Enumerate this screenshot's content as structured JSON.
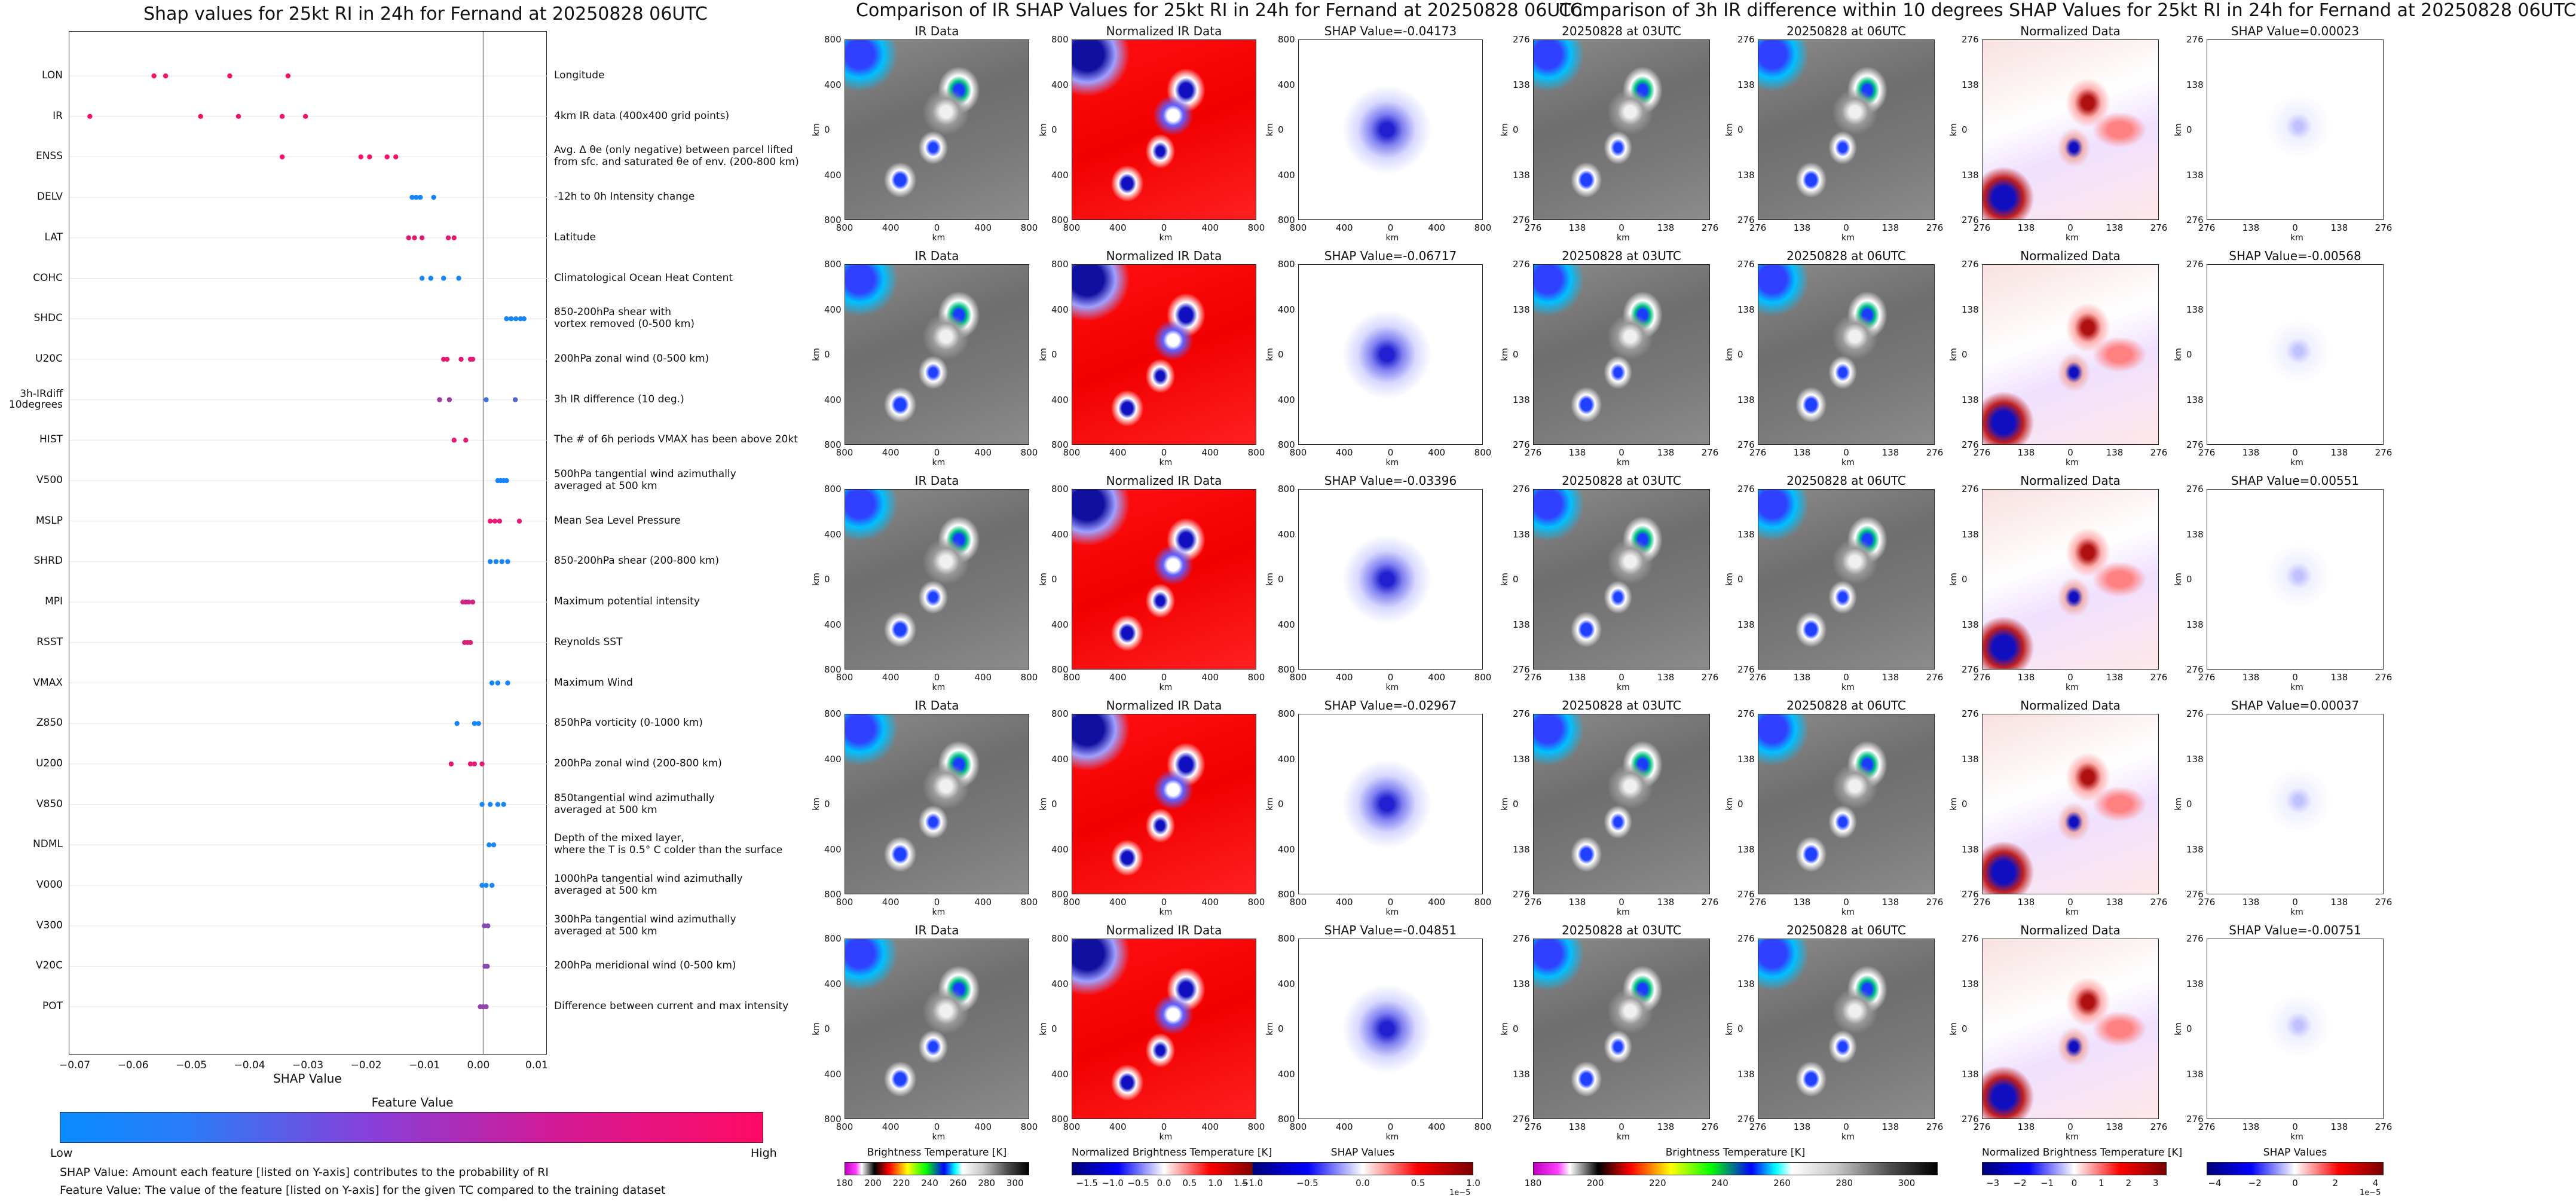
{
  "titles": {
    "left": "Shap values for 25kt RI in 24h for Fernand at 20250828 06UTC",
    "middle": "Comparison of IR SHAP Values for 25kt RI in 24h for Fernand at 20250828 06UTC",
    "right": "Comparison of 3h IR difference within 10 degrees SHAP Values for 25kt RI in 24h for Fernand at 20250828 06UTC"
  },
  "chart_data": [
    {
      "type": "scatter",
      "title": "Shap values for 25kt RI in 24h for Fernand at 20250828 06UTC",
      "xlabel": "SHAP Value",
      "xlim": [
        -0.07,
        0.01
      ],
      "xticks": [
        "−0.07",
        "−0.06",
        "−0.05",
        "−0.04",
        "−0.03",
        "−0.02",
        "−0.01",
        "0.00",
        "0.01"
      ],
      "xtick_values": [
        -0.07,
        -0.06,
        -0.05,
        -0.04,
        -0.03,
        -0.02,
        -0.01,
        0.0,
        0.01
      ],
      "colorbar": {
        "label": "Feature Value",
        "low": "Low",
        "high": "High",
        "low_color": "#0a8cff",
        "high_color": "#ff0a64"
      },
      "features": [
        {
          "name": "LON",
          "desc": "Longitude",
          "values": [
            -0.0565,
            -0.0545,
            -0.0435,
            -0.0335
          ],
          "f": [
            0.95,
            0.95,
            0.95,
            0.95
          ]
        },
        {
          "name": "IR",
          "desc": "4km IR data (400x400 grid points)",
          "values": [
            -0.0675,
            -0.0485,
            -0.042,
            -0.0345,
            -0.0305
          ],
          "f": [
            0.95,
            0.95,
            0.95,
            0.95,
            0.95
          ]
        },
        {
          "name": "ENSS",
          "desc": "Avg. Δ θe (only negative) between parcel lifted\nfrom sfc. and saturated θe of env. (200-800 km)",
          "values": [
            -0.0345,
            -0.021,
            -0.0195,
            -0.0165,
            -0.015
          ],
          "f": [
            0.95,
            0.95,
            0.95,
            0.95,
            0.95
          ]
        },
        {
          "name": "DELV",
          "desc": "-12h to 0h Intensity change",
          "values": [
            -0.0122,
            -0.0115,
            -0.0108,
            -0.0085
          ],
          "f": [
            0.05,
            0.05,
            0.05,
            0.05
          ]
        },
        {
          "name": "LAT",
          "desc": "Latitude",
          "values": [
            -0.0128,
            -0.0118,
            -0.0105,
            -0.006,
            -0.005
          ],
          "f": [
            0.9,
            0.9,
            0.9,
            0.9,
            0.9
          ]
        },
        {
          "name": "COHC",
          "desc": "Climatological Ocean Heat Content",
          "values": [
            -0.0105,
            -0.009,
            -0.0068,
            -0.0042
          ],
          "f": [
            0.05,
            0.05,
            0.05,
            0.05
          ]
        },
        {
          "name": "SHDC",
          "desc": "850-200hPa shear with\nvortex removed (0-500 km)",
          "values": [
            0.004,
            0.0048,
            0.0056,
            0.0064,
            0.007
          ],
          "f": [
            0.05,
            0.05,
            0.05,
            0.05,
            0.05
          ]
        },
        {
          "name": "U20C",
          "desc": "200hPa zonal wind (0-500 km)",
          "values": [
            -0.0068,
            -0.0062,
            -0.0038,
            -0.0022,
            -0.0018
          ],
          "f": [
            0.9,
            0.9,
            0.9,
            0.9,
            0.9
          ]
        },
        {
          "name": "3h-IRdiff\n10degrees",
          "desc": "3h IR difference (10 deg.)",
          "values": [
            -0.0075,
            -0.0058,
            0.0005,
            0.0055
          ],
          "f": [
            0.6,
            0.6,
            0.2,
            0.3
          ]
        },
        {
          "name": "HIST",
          "desc": "The # of 6h periods VMAX has been above 20kt",
          "values": [
            -0.005,
            -0.003
          ],
          "f": [
            0.9,
            0.9
          ]
        },
        {
          "name": "V500",
          "desc": "500hPa tangential wind azimuthally\naveraged at 500 km",
          "values": [
            0.0025,
            0.003,
            0.0035,
            0.004
          ],
          "f": [
            0.05,
            0.05,
            0.05,
            0.05
          ]
        },
        {
          "name": "MSLP",
          "desc": "Mean Sea Level Pressure",
          "values": [
            0.0012,
            0.002,
            0.0028,
            0.0062
          ],
          "f": [
            0.9,
            0.9,
            0.9,
            0.9
          ]
        },
        {
          "name": "SHRD",
          "desc": "850-200hPa shear (200-800 km)",
          "values": [
            0.0012,
            0.0022,
            0.0032,
            0.0042
          ],
          "f": [
            0.05,
            0.05,
            0.05,
            0.05
          ]
        },
        {
          "name": "MPI",
          "desc": "Maximum potential intensity",
          "values": [
            -0.0035,
            -0.003,
            -0.0025,
            -0.0018
          ],
          "f": [
            0.8,
            0.8,
            0.8,
            0.8
          ]
        },
        {
          "name": "RSST",
          "desc": "Reynolds SST",
          "values": [
            -0.0032,
            -0.0027,
            -0.0022
          ],
          "f": [
            0.85,
            0.85,
            0.85
          ]
        },
        {
          "name": "VMAX",
          "desc": "Maximum Wind",
          "values": [
            0.0015,
            0.0025,
            0.0042
          ],
          "f": [
            0.05,
            0.05,
            0.05
          ]
        },
        {
          "name": "Z850",
          "desc": "850hPa vorticity (0-1000 km)",
          "values": [
            -0.0045,
            -0.0015,
            -0.0008
          ],
          "f": [
            0.05,
            0.05,
            0.05
          ]
        },
        {
          "name": "U200",
          "desc": "200hPa zonal wind (200-800 km)",
          "values": [
            -0.0055,
            -0.0022,
            -0.0015,
            -0.0002
          ],
          "f": [
            0.9,
            0.9,
            0.9,
            0.9
          ]
        },
        {
          "name": "V850",
          "desc": "850tangential wind azimuthally\naveraged at 500 km",
          "values": [
            -0.0002,
            0.0012,
            0.0025,
            0.0035
          ],
          "f": [
            0.05,
            0.05,
            0.05,
            0.05
          ]
        },
        {
          "name": "NDML",
          "desc": "Depth of the mixed layer,\nwhere the T is 0.5° C colder than the surface",
          "values": [
            0.001,
            0.0018
          ],
          "f": [
            0.05,
            0.05
          ]
        },
        {
          "name": "V000",
          "desc": "1000hPa tangential wind azimuthally\naveraged at 500 km",
          "values": [
            -0.0002,
            0.0005,
            0.0015
          ],
          "f": [
            0.05,
            0.05,
            0.05
          ]
        },
        {
          "name": "V300",
          "desc": "300hPa tangential wind azimuthally\naveraged at 500 km",
          "values": [
            0.0002,
            0.0008
          ],
          "f": [
            0.5,
            0.5
          ]
        },
        {
          "name": "V20C",
          "desc": "200hPa meridional wind (0-500 km)",
          "values": [
            0.0003,
            0.0007
          ],
          "f": [
            0.5,
            0.5
          ]
        },
        {
          "name": "POT",
          "desc": "Difference between current and max intensity",
          "values": [
            -0.0005,
            0.0,
            0.0005
          ],
          "f": [
            0.55,
            0.55,
            0.55
          ]
        }
      ]
    },
    {
      "type": "heatmap",
      "title": "Comparison of IR SHAP Values for 25kt RI in 24h for Fernand at 20250828 06UTC",
      "columns": [
        "IR Data",
        "Normalized IR Data",
        "SHAP"
      ],
      "shap_values": [
        "-0.04173",
        "-0.06717",
        "-0.03396",
        "-0.02967",
        "-0.04851"
      ],
      "xlabel": "km",
      "ylabel": "km",
      "xticks": [
        "800",
        "400",
        "0",
        "400",
        "800"
      ],
      "yticks": [
        "800",
        "400",
        "0",
        "400",
        "800"
      ]
    },
    {
      "type": "heatmap",
      "title": "Comparison of 3h IR difference within 10 degrees SHAP Values for 25kt RI in 24h for Fernand at 20250828 06UTC",
      "columns": [
        "20250828 at 03UTC",
        "20250828 at 06UTC",
        "Normalized Data",
        "SHAP"
      ],
      "shap_values": [
        "0.00023",
        "-0.00568",
        "0.00551",
        "0.00037",
        "-0.00751"
      ],
      "xlabel": "km",
      "ylabel": "km",
      "xticks": [
        "276",
        "138",
        "0",
        "138",
        "276"
      ],
      "yticks": [
        "276",
        "138",
        "0",
        "138",
        "276"
      ]
    }
  ],
  "panel_labels": {
    "ir": "IR Data",
    "nir": "Normalized IR Data",
    "shap_prefix": "SHAP Value=",
    "t03": "20250828 at 03UTC",
    "t06": "20250828 at 06UTC",
    "ndata": "Normalized Data",
    "km": "km"
  },
  "colorbars": [
    {
      "label": "Brightness Temperature [K]",
      "ticks": [
        "180",
        "200",
        "220",
        "240",
        "260",
        "280",
        "300"
      ],
      "range": [
        180,
        310
      ]
    },
    {
      "label": "Normalized Brightness Temperature [K]",
      "ticks": [
        "−1.5",
        "−1.0",
        "−0.5",
        "0.0",
        "0.5",
        "1.0",
        "1.5"
      ],
      "range": [
        -1.8,
        1.8
      ]
    },
    {
      "label": "SHAP Values",
      "ticks": [
        "−1.0",
        "−0.5",
        "0.0",
        "0.5",
        "1.0"
      ],
      "range": [
        -1.0,
        1.0
      ],
      "exp": "1e−5"
    },
    {
      "label": "Brightness Temperature [K]",
      "ticks": [
        "180",
        "200",
        "220",
        "240",
        "260",
        "280",
        "300"
      ],
      "range": [
        180,
        310
      ]
    },
    {
      "label": "Normalized Brightness Temperature [K]",
      "ticks": [
        "−3",
        "−2",
        "−1",
        "0",
        "1",
        "2",
        "3"
      ],
      "range": [
        -3.4,
        3.4
      ]
    },
    {
      "label": "SHAP Values",
      "ticks": [
        "−4",
        "−2",
        "0",
        "2",
        "4"
      ],
      "range": [
        -4.4,
        4.4
      ],
      "exp": "1e−5"
    }
  ],
  "notes": {
    "line1": "SHAP Value: Amount each feature [listed on Y-axis] contributes to the probability of RI",
    "line2": "Feature Value: The value of the feature [listed on Y-axis] for the given TC compared to the training dataset"
  },
  "colors": {
    "blue": "#0a8cff",
    "pink": "#ff0a64"
  }
}
